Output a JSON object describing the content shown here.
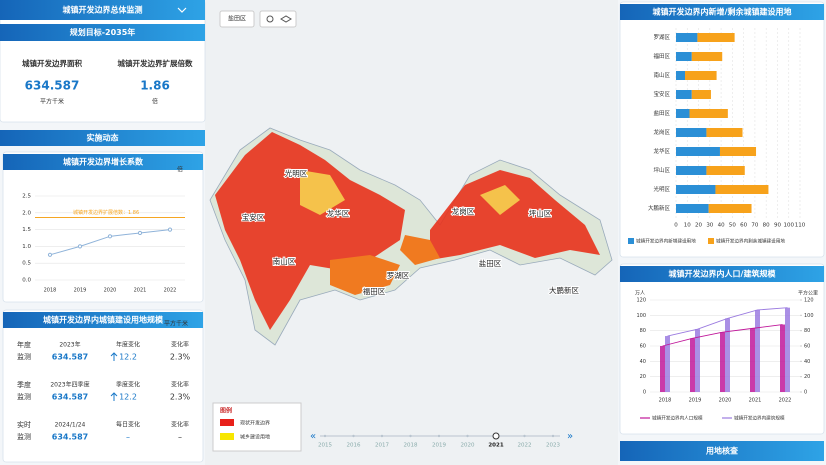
{
  "left_panel": {
    "header": "城镇开发边界总体监测",
    "goal": "规划目标-2035年",
    "stats": [
      {
        "label": "城镇开发边界面积",
        "value": 634.587,
        "unit": "平方千米"
      },
      {
        "label": "城镇开发边界扩展倍数",
        "value": 1.86,
        "unit": "倍"
      }
    ],
    "section": "实施动态"
  },
  "scale_table": {
    "title": "城镇开发边界内城镇建设用地规模",
    "unit": "平方千米",
    "rows": [
      {
        "label": [
          "年度",
          "监测"
        ],
        "period": "2023年",
        "value": 634.587,
        "change_label": "年度变化",
        "change": 12.2,
        "rate_label": "变化率",
        "rate": "2.3%"
      },
      {
        "label": [
          "季度",
          "监测"
        ],
        "period": "2023年四季度",
        "value": 634.587,
        "change_label": "季度变化",
        "change": 12.2,
        "rate_label": "变化率",
        "rate": "2.3%"
      },
      {
        "label": [
          "实时",
          "监测"
        ],
        "period": "2024/1/24",
        "value": 634.587,
        "change_label": "每日变化",
        "change": "–",
        "rate_label": "变化率",
        "rate": "–"
      }
    ]
  },
  "map": {
    "district": "盐田区",
    "labels": [
      "光明区",
      "宝安区",
      "龙华区",
      "龙岗区",
      "坪山区",
      "南山区",
      "福田区",
      "罗湖区",
      "盐田区",
      "大鹏新区"
    ],
    "legend": {
      "title": "图例",
      "items": [
        {
          "name": "现状开发边界",
          "color": "#e8201a"
        },
        {
          "name": "城乡建设用地",
          "color": "#f7e600"
        }
      ]
    },
    "timeline": {
      "years": [
        2015,
        2016,
        2017,
        2018,
        2019,
        2020,
        2021,
        2022,
        2023
      ],
      "selected": 2021
    }
  },
  "right_footer": "用地核查",
  "chart_data": [
    {
      "type": "line",
      "title": "城镇开发边界增长系数",
      "y_unit": "倍",
      "categories": [
        "2018",
        "2019",
        "2020",
        "2021",
        "2022"
      ],
      "values": [
        0.75,
        1.0,
        1.3,
        1.4,
        1.5
      ],
      "color": "#8fb3d9",
      "ylim": [
        0,
        2.5
      ],
      "yticks": [
        {
          "value": 0,
          "label": "0.0"
        },
        {
          "value": 0.5,
          "label": "0.5"
        },
        {
          "value": 1,
          "label": "1.0"
        },
        {
          "value": 1.5,
          "label": "1.5"
        },
        {
          "value": 2,
          "label": "2.0"
        },
        {
          "value": 2.5,
          "label": "2.5"
        }
      ],
      "grid": true,
      "reference": {
        "label": "城镇开发边界扩展倍数：1.86",
        "value": 1.86,
        "color": "#f5a623"
      }
    },
    {
      "type": "stacked-hbar",
      "title": "城镇开发边界内新增/剩余城镇建设用地",
      "categories": [
        "罗湖区",
        "福田区",
        "南山区",
        "宝安区",
        "盐田区",
        "龙岗区",
        "龙华区",
        "坪山区",
        "光明区",
        "大鹏新区"
      ],
      "series": [
        {
          "name": "城镇开发边界内新增建设用地",
          "color": "#2b8fd6",
          "values": [
            19,
            14,
            8,
            14,
            12,
            27,
            39,
            27,
            35,
            29
          ]
        },
        {
          "name": "城镇开发边界内剩余城镇建设用地",
          "color": "#f7a21b",
          "values": [
            33,
            27,
            28,
            17,
            34,
            32,
            32,
            34,
            47,
            38
          ]
        }
      ],
      "xlim": [
        0,
        110
      ],
      "xticks": [
        0,
        10,
        20,
        30,
        40,
        50,
        60,
        70,
        80,
        90,
        100,
        110
      ],
      "grid": true
    },
    {
      "type": "combo",
      "title": "城镇开发边界内人口/建筑规模",
      "categories": [
        "2018",
        "2019",
        "2020",
        "2021",
        "2022"
      ],
      "y_unit": "万人",
      "y2_unit": "平方公里",
      "ylim": [
        0,
        120
      ],
      "yticks": [
        0,
        20,
        40,
        60,
        80,
        100,
        120
      ],
      "y2lim": [
        0,
        120
      ],
      "y2ticks": [
        0,
        20,
        40,
        60,
        80,
        100,
        120
      ],
      "grid": true,
      "series": [
        {
          "name": "城镇开发边界内人口规模",
          "color": "#c0179a",
          "values": [
            60,
            70,
            78,
            83,
            88
          ]
        },
        {
          "name": "城镇开发边界内建筑规模",
          "color": "#9b7be0",
          "values": [
            73,
            82,
            96,
            107,
            110
          ],
          "axis": "y2"
        }
      ]
    }
  ]
}
